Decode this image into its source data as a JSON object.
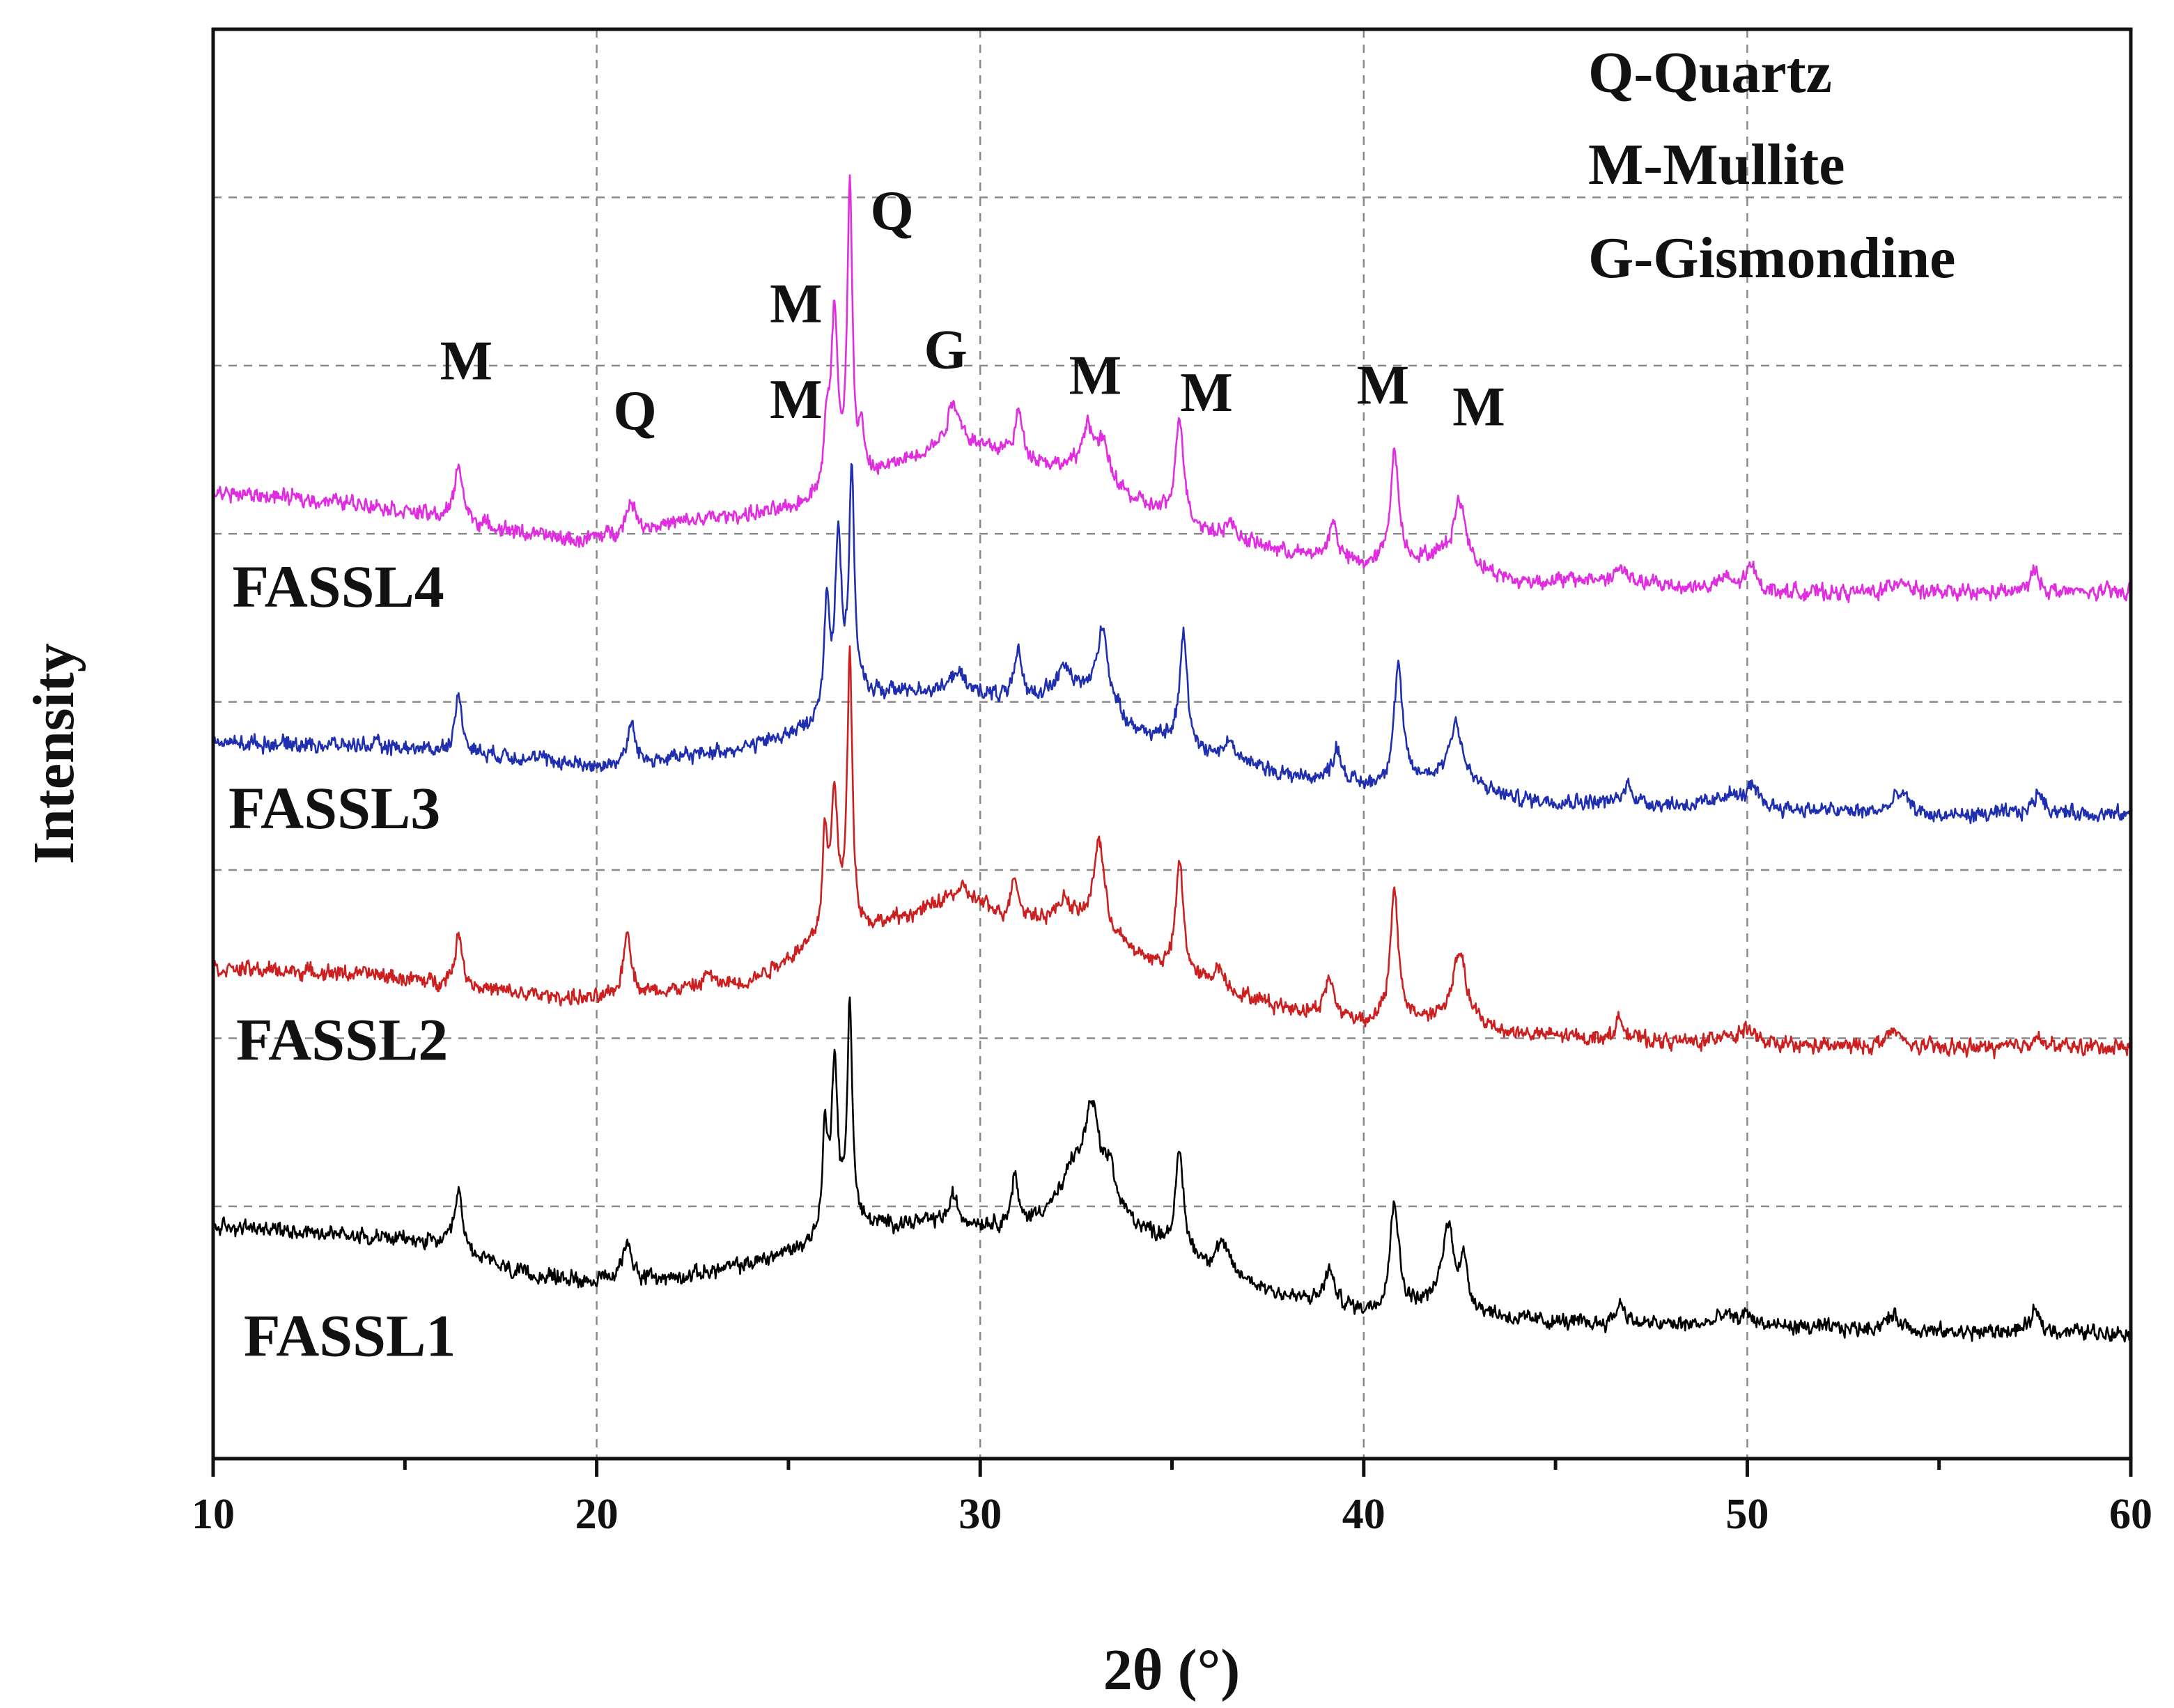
{
  "chart_data": {
    "type": "line",
    "title": "",
    "xlabel": "2θ (°)",
    "ylabel": "Intensity",
    "xlim": [
      10,
      60
    ],
    "ylim": [
      0,
      100
    ],
    "xticks": [
      10,
      20,
      30,
      40,
      50,
      60
    ],
    "xtick_labels": [
      "10",
      "20",
      "30",
      "40",
      "50",
      "60"
    ],
    "grid": true,
    "legend": [
      {
        "label": "Q-Quartz"
      },
      {
        "label": "M-Mullite"
      },
      {
        "label": "G-Gismondine"
      }
    ],
    "series": [
      {
        "name": "FASSL1",
        "color": "#000000",
        "label_at": [
          10.8,
          7.2
        ],
        "baseline": [
          [
            10,
            16.2
          ],
          [
            12,
            16
          ],
          [
            14,
            15.6
          ],
          [
            16,
            15
          ],
          [
            18,
            12.9
          ],
          [
            20,
            12.4
          ],
          [
            22,
            12.6
          ],
          [
            24,
            13.6
          ],
          [
            25.5,
            14.8
          ],
          [
            27,
            16.2
          ],
          [
            29,
            16.6
          ],
          [
            31,
            16.2
          ],
          [
            32,
            17.6
          ],
          [
            33,
            18.1
          ],
          [
            34,
            16.3
          ],
          [
            36,
            13.3
          ],
          [
            38,
            11.3
          ],
          [
            40,
            10.3
          ],
          [
            42,
            10.8
          ],
          [
            44,
            9.7
          ],
          [
            46,
            9.4
          ],
          [
            50,
            9.3
          ],
          [
            55,
            8.8
          ],
          [
            58,
            8.9
          ],
          [
            60,
            8.8
          ]
        ],
        "peaks": [
          [
            16.4,
            4.0,
            0.12
          ],
          [
            20.8,
            2.8,
            0.14
          ],
          [
            25.95,
            7.0,
            0.08
          ],
          [
            26.2,
            12.0,
            0.1
          ],
          [
            26.6,
            15.7,
            0.08
          ],
          [
            29.3,
            1.8,
            0.12
          ],
          [
            30.9,
            3.5,
            0.1
          ],
          [
            32.4,
            2.0,
            0.2
          ],
          [
            32.9,
            6.5,
            0.25
          ],
          [
            33.4,
            2.5,
            0.12
          ],
          [
            35.2,
            6.8,
            0.12
          ],
          [
            36.3,
            2.0,
            0.2
          ],
          [
            39.1,
            2.4,
            0.15
          ],
          [
            40.8,
            7.6,
            0.13
          ],
          [
            42.2,
            5.5,
            0.18
          ],
          [
            42.6,
            3.0,
            0.12
          ],
          [
            46.7,
            1.5,
            0.15
          ],
          [
            49.4,
            0.7,
            0.2
          ],
          [
            50,
            0.8,
            0.2
          ],
          [
            53.8,
            1.0,
            0.3
          ],
          [
            57.5,
            1.3,
            0.15
          ]
        ]
      },
      {
        "name": "FASSL2",
        "color": "#cc1f1f",
        "label_at": [
          10.6,
          27.9
        ],
        "baseline": [
          [
            10,
            34.3
          ],
          [
            14,
            33.9
          ],
          [
            18,
            32.5
          ],
          [
            20,
            32.1
          ],
          [
            22,
            32.8
          ],
          [
            24,
            33.4
          ],
          [
            25.5,
            35.7
          ],
          [
            27,
            37
          ],
          [
            28.5,
            38.3
          ],
          [
            29.5,
            39.8
          ],
          [
            30.5,
            38
          ],
          [
            32,
            37.8
          ],
          [
            33,
            37.6
          ],
          [
            34,
            35.3
          ],
          [
            36,
            32.9
          ],
          [
            38,
            31.5
          ],
          [
            40,
            30.5
          ],
          [
            42,
            30.7
          ],
          [
            44,
            29.7
          ],
          [
            46,
            29.4
          ],
          [
            50,
            28.9
          ],
          [
            55,
            28.7
          ],
          [
            58,
            28.8
          ],
          [
            60,
            28.8
          ]
        ],
        "peaks": [
          [
            16.4,
            3.6,
            0.12
          ],
          [
            20.8,
            4.6,
            0.12
          ],
          [
            22.9,
            1.0,
            0.1
          ],
          [
            25.95,
            7.0,
            0.08
          ],
          [
            26.2,
            10.0,
            0.1
          ],
          [
            26.6,
            19.5,
            0.08
          ],
          [
            30.9,
            3.0,
            0.1
          ],
          [
            32.2,
            1.5,
            0.15
          ],
          [
            33.1,
            6.0,
            0.15
          ],
          [
            35.2,
            7.8,
            0.12
          ],
          [
            36.2,
            1.5,
            0.2
          ],
          [
            39.1,
            2.5,
            0.15
          ],
          [
            40.8,
            8.8,
            0.13
          ],
          [
            42.5,
            5.0,
            0.2
          ],
          [
            46.7,
            1.4,
            0.15
          ],
          [
            49.4,
            0.8,
            0.2
          ],
          [
            50,
            1.2,
            0.2
          ],
          [
            53.8,
            1.1,
            0.25
          ],
          [
            57.5,
            0.8,
            0.15
          ]
        ]
      },
      {
        "name": "FASSL3",
        "color": "#1f2fb0",
        "label_at": [
          10.4,
          44.1
        ],
        "baseline": [
          [
            10,
            50.1
          ],
          [
            14,
            49.9
          ],
          [
            18,
            49.1
          ],
          [
            20,
            48.4
          ],
          [
            22,
            49
          ],
          [
            24,
            49.8
          ],
          [
            25.5,
            51
          ],
          [
            27,
            53.4
          ],
          [
            28.5,
            53.8
          ],
          [
            30,
            53.6
          ],
          [
            31,
            53
          ],
          [
            32,
            53.9
          ],
          [
            33,
            53.8
          ],
          [
            34,
            51
          ],
          [
            36,
            49.2
          ],
          [
            38,
            47.8
          ],
          [
            40,
            47
          ],
          [
            42,
            47.6
          ],
          [
            44,
            46.1
          ],
          [
            46,
            45.9
          ],
          [
            50,
            45.6
          ],
          [
            55,
            44.9
          ],
          [
            58,
            45.2
          ],
          [
            60,
            45
          ]
        ],
        "peaks": [
          [
            16.4,
            3.8,
            0.12
          ],
          [
            20.9,
            2.7,
            0.12
          ],
          [
            26.0,
            8.0,
            0.08
          ],
          [
            26.3,
            12.0,
            0.1
          ],
          [
            26.65,
            16.2,
            0.08
          ],
          [
            29.4,
            1.5,
            0.15
          ],
          [
            31,
            3.3,
            0.12
          ],
          [
            32.2,
            1.5,
            0.15
          ],
          [
            33.2,
            5.0,
            0.15
          ],
          [
            35.3,
            7.8,
            0.12
          ],
          [
            36.5,
            1.2,
            0.2
          ],
          [
            39.3,
            2.4,
            0.15
          ],
          [
            40.9,
            8.2,
            0.13
          ],
          [
            42.4,
            4.2,
            0.2
          ],
          [
            46.9,
            1.3,
            0.15
          ],
          [
            49.5,
            0.9,
            0.2
          ],
          [
            50.1,
            1.3,
            0.2
          ],
          [
            54,
            1.5,
            0.25
          ],
          [
            57.6,
            1.5,
            0.15
          ]
        ]
      },
      {
        "name": "FASSL4",
        "color": "#e02de0",
        "label_at": [
          10.5,
          59.6
        ],
        "baseline": [
          [
            10,
            67.6
          ],
          [
            14,
            66.8
          ],
          [
            18,
            64.8
          ],
          [
            19.5,
            64.2
          ],
          [
            21,
            65
          ],
          [
            23,
            65.8
          ],
          [
            25,
            66.3
          ],
          [
            26,
            67.6
          ],
          [
            27,
            68.5
          ],
          [
            28.5,
            70.3
          ],
          [
            29.5,
            71
          ],
          [
            30.5,
            70.5
          ],
          [
            32,
            69.4
          ],
          [
            33,
            69.4
          ],
          [
            34,
            67
          ],
          [
            36,
            64.7
          ],
          [
            38,
            63.4
          ],
          [
            40,
            62.4
          ],
          [
            42,
            63
          ],
          [
            44,
            61.3
          ],
          [
            46,
            61.5
          ],
          [
            50,
            60.6
          ],
          [
            55,
            60.5
          ],
          [
            58,
            60.6
          ],
          [
            60,
            60.6
          ]
        ],
        "peaks": [
          [
            16.4,
            4.1,
            0.12
          ],
          [
            20.9,
            2.2,
            0.12
          ],
          [
            26.0,
            4.0,
            0.08
          ],
          [
            26.2,
            12.0,
            0.1
          ],
          [
            26.6,
            20.3,
            0.08
          ],
          [
            26.9,
            3.0,
            0.08
          ],
          [
            29.3,
            3.0,
            0.2
          ],
          [
            31,
            3.0,
            0.12
          ],
          [
            32.8,
            3.0,
            0.15
          ],
          [
            33.2,
            2.0,
            0.15
          ],
          [
            35.2,
            7.5,
            0.12
          ],
          [
            36.5,
            1.0,
            0.2
          ],
          [
            39.2,
            2.6,
            0.15
          ],
          [
            40.8,
            7.8,
            0.13
          ],
          [
            42.5,
            4.4,
            0.2
          ],
          [
            46.7,
            1.0,
            0.15
          ],
          [
            49.4,
            0.8,
            0.2
          ],
          [
            50.1,
            1.7,
            0.2
          ],
          [
            54,
            1.0,
            0.25
          ],
          [
            57.5,
            1.5,
            0.15
          ]
        ]
      }
    ],
    "annotations": [
      {
        "text": "M",
        "x": 16.6,
        "y": 75.5
      },
      {
        "text": "Q",
        "x": 21.0,
        "y": 72.0
      },
      {
        "text": "M",
        "x": 25.2,
        "y": 79.5
      },
      {
        "text": "M",
        "x": 25.2,
        "y": 72.8
      },
      {
        "text": "Q",
        "x": 27.7,
        "y": 86.0
      },
      {
        "text": "G",
        "x": 29.1,
        "y": 76.3
      },
      {
        "text": "M",
        "x": 33.0,
        "y": 74.5
      },
      {
        "text": "M",
        "x": 35.9,
        "y": 73.3
      },
      {
        "text": "M",
        "x": 40.5,
        "y": 73.8
      },
      {
        "text": "M",
        "x": 43.0,
        "y": 72.3
      }
    ]
  }
}
